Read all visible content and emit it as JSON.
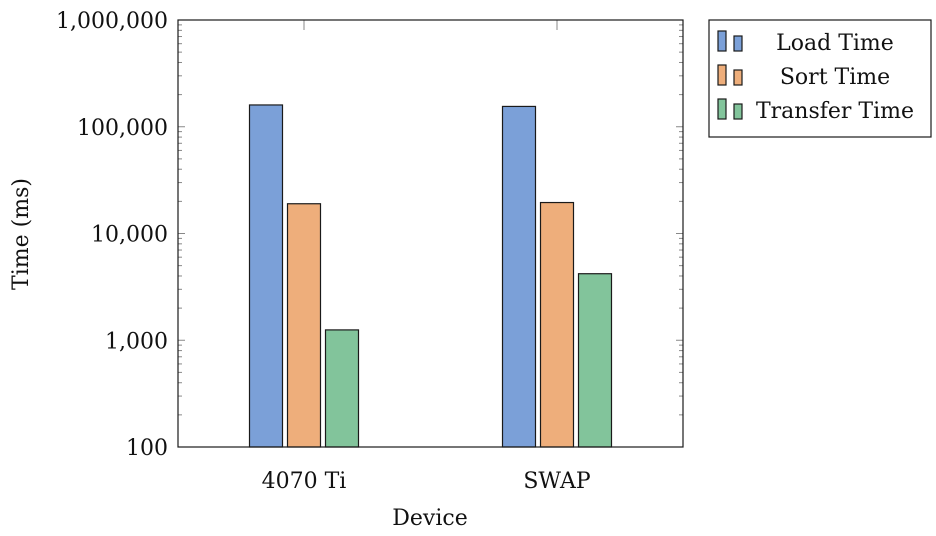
{
  "chart_data": {
    "type": "bar",
    "categories": [
      "4070 Ti",
      "SWAP"
    ],
    "series": [
      {
        "name": "Load Time",
        "values": [
          160000,
          155000
        ],
        "color": "#7ba0d8"
      },
      {
        "name": "Sort Time",
        "values": [
          19000,
          19500
        ],
        "color": "#eeae7b"
      },
      {
        "name": "Transfer Time",
        "values": [
          1250,
          4200
        ],
        "color": "#82c49b"
      }
    ],
    "xlabel": "Device",
    "ylabel": "Time (ms)",
    "yscale": "log",
    "ylim": [
      100,
      1000000
    ],
    "yticks": [
      100,
      1000,
      10000,
      100000,
      1000000
    ],
    "ytick_labels": [
      "100",
      "1,000",
      "10,000",
      "100,000",
      "1,000,000"
    ],
    "legend_position": "outside-right-top"
  }
}
